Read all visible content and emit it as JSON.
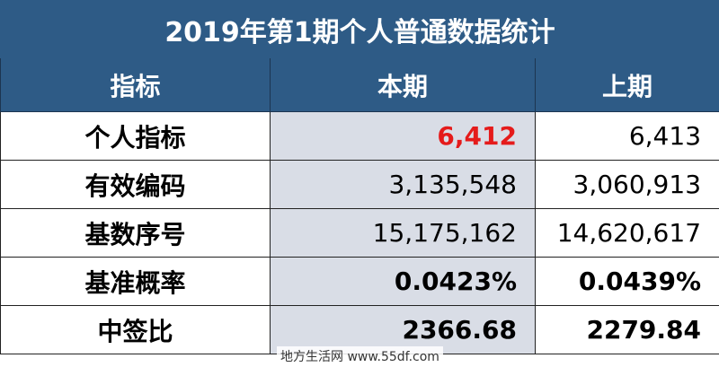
{
  "header": {
    "title": "2019年第1期个人普通数据统计"
  },
  "table": {
    "columns": [
      "指标",
      "本期",
      "上期"
    ],
    "rows": [
      [
        "个人指标",
        "6,412",
        "6,413"
      ],
      [
        "有效编码",
        "3,135,548",
        "3,060,913"
      ],
      [
        "基数序号",
        "15,175,162",
        "14,620,617"
      ],
      [
        "基准概率",
        "0.0423%",
        "0.0439%"
      ],
      [
        "中签比",
        "2366.68",
        "2279.84"
      ]
    ]
  },
  "watermark": "地方生活网 www.55df.com"
}
